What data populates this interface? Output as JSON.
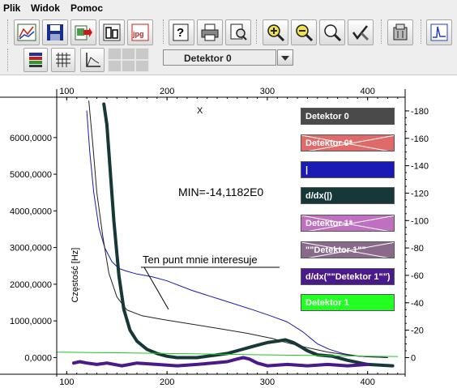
{
  "menu": [
    "Plik",
    "Widok",
    "Pomoc"
  ],
  "toolbar_icons": [
    "chart-icon",
    "save-icon",
    "export-icon",
    "copy-icon",
    "jpg-icon",
    "help-icon",
    "print-icon",
    "print-preview-icon",
    "zoom-in-icon",
    "zoom-out-icon",
    "zoom-fit-icon",
    "tools-icon",
    "settings-icon",
    "signal-icon"
  ],
  "toolbar2_icons": [
    "color-bars-icon",
    "grid-icon",
    "axes-icon"
  ],
  "detector_select": "Detektor 0",
  "legend": [
    {
      "label": "Detektor 0",
      "color": "#4a4a4a",
      "disabled": false
    },
    {
      "label": "Detektor 0*",
      "color": "#e06a6a",
      "disabled": true
    },
    {
      "label": "|",
      "color": "#1a1ab4",
      "disabled": false
    },
    {
      "label": "d/dx(|)",
      "color": "#173838",
      "disabled": false
    },
    {
      "label": "Detektor 1*",
      "color": "#c070c0",
      "disabled": true
    },
    {
      "label": "\"\"Detektor 1\"\"",
      "color": "#8a6a8a",
      "disabled": true
    },
    {
      "label": "d/dx(\"\"Detektor 1\"\")",
      "color": "#4a1a8a",
      "disabled": false
    },
    {
      "label": "Detektor 1",
      "color": "#22ff22",
      "disabled": false
    }
  ],
  "annotations": {
    "min_label": "MIN=-14,1182E0",
    "note": "Ten punt mnie interesuje",
    "x_marker": "X"
  },
  "chart_data": {
    "type": "line",
    "ylabel": "Częstość [Hz]",
    "xlim": [
      90,
      435
    ],
    "ylim_left": [
      -300000,
      7100000
    ],
    "ylim_right": [
      -8,
      190
    ],
    "x_ticks": [
      100,
      200,
      300,
      400
    ],
    "y_left_ticks": [
      "0,0000",
      "1000,0000",
      "2000,0000",
      "3000,0000",
      "4000,0000",
      "5000,0000",
      "6000,0000"
    ],
    "y_left_tick_values": [
      0,
      1000000,
      2000000,
      3000000,
      4000000,
      5000000,
      6000000
    ],
    "y_right_ticks": [
      0,
      20,
      40,
      60,
      80,
      100,
      120,
      140,
      160,
      180
    ],
    "series": [
      {
        "name": "|",
        "color": "#1a1ab4",
        "axis": "right",
        "width": 1,
        "x": [
          120,
          123,
          127,
          132,
          138,
          145,
          152,
          160,
          170,
          185,
          200,
          225,
          255,
          285,
          305,
          320,
          335,
          350,
          362,
          375,
          390,
          405,
          420
        ],
        "y": [
          180,
          150,
          120,
          95,
          80,
          70,
          65,
          63,
          61,
          59,
          56,
          49,
          42,
          35,
          30,
          26,
          19,
          10,
          6,
          3,
          1,
          0.5,
          0
        ]
      },
      {
        "name": "Detektor 0",
        "color": "#222222",
        "axis": "left",
        "width": 1,
        "x": [
          122,
          126,
          130,
          136,
          142,
          150,
          160,
          175,
          195,
          220,
          250,
          280,
          305,
          320,
          340,
          360,
          380,
          400,
          420
        ],
        "y": [
          7000000,
          5800000,
          4500000,
          3300000,
          2300000,
          1650000,
          1300000,
          1140000,
          1040000,
          930000,
          800000,
          660000,
          520000,
          400000,
          270000,
          150000,
          70000,
          20000,
          0
        ]
      },
      {
        "name": "d/dx(|)",
        "color": "#173838",
        "axis": "right",
        "width": 4,
        "x": [
          137,
          140,
          143,
          147,
          152,
          157,
          163,
          170,
          180,
          190,
          200,
          210,
          220,
          230,
          240,
          250,
          260,
          270,
          280,
          290,
          300,
          310,
          318,
          326,
          333,
          340,
          350,
          365,
          380,
          400,
          425
        ],
        "y": [
          185,
          170,
          140,
          100,
          60,
          35,
          20,
          12,
          6,
          3,
          1,
          0,
          0,
          0,
          1,
          2,
          3,
          5,
          7,
          9,
          11,
          12,
          13,
          11,
          8,
          5,
          2,
          1,
          -2,
          -5,
          -6
        ]
      },
      {
        "name": "d/dx(\"\"Detektor 1\"\")",
        "color": "#4a1a8a",
        "axis": "right",
        "width": 4,
        "x": [
          107,
          113,
          120,
          130,
          140,
          155,
          170,
          190,
          210,
          230,
          245,
          260,
          270,
          276,
          282,
          290,
          300,
          320,
          340,
          360,
          380,
          400
        ],
        "y": [
          -4,
          -3,
          -4,
          -5,
          -4,
          -6,
          -4,
          -5,
          -6,
          -5,
          -4,
          -3,
          -1,
          0,
          -1,
          -4,
          -6,
          -5,
          -6,
          -5,
          -6,
          -5
        ]
      },
      {
        "name": "Detektor 1",
        "color": "#22c722",
        "axis": "right",
        "width": 1,
        "x": [
          90,
          150,
          200,
          250,
          300,
          350,
          400,
          430
        ],
        "y": [
          4,
          3.5,
          3,
          2.5,
          2,
          1.5,
          1,
          0.8
        ]
      }
    ]
  }
}
